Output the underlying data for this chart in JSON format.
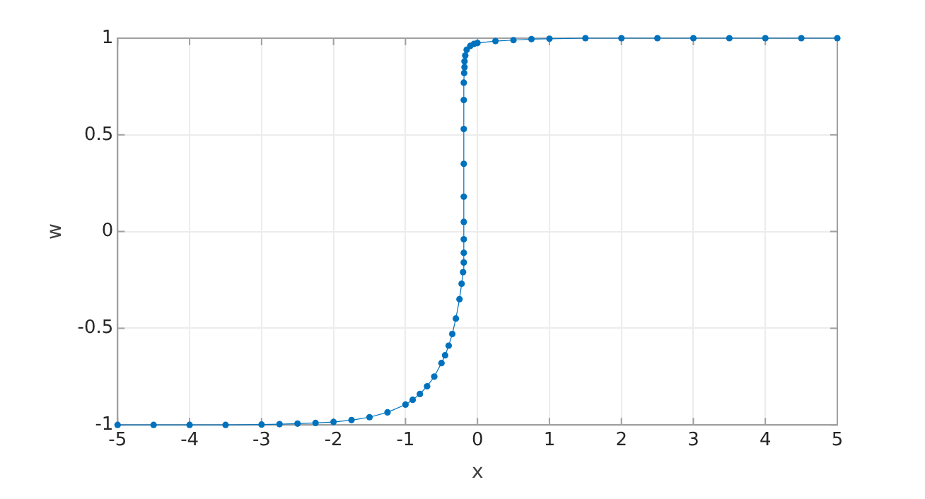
{
  "chart_data": {
    "type": "line",
    "xlabel": "x",
    "ylabel": "w",
    "xlim": [
      -5,
      5
    ],
    "ylim": [
      -1,
      1
    ],
    "xticks": [
      -5,
      -4,
      -3,
      -2,
      -1,
      0,
      1,
      2,
      3,
      4,
      5
    ],
    "yticks": [
      -1,
      -0.5,
      0,
      0.5,
      1
    ],
    "grid": true,
    "marker": "circle",
    "legend": false,
    "series": [
      {
        "color": "#0072bd",
        "x": [
          -5,
          -4.5,
          -4,
          -3.5,
          -3,
          -2.75,
          -2.5,
          -2.25,
          -2,
          -1.75,
          -1.5,
          -1.25,
          -1,
          -0.9,
          -0.8,
          -0.7,
          -0.6,
          -0.5,
          -0.45,
          -0.4,
          -0.35,
          -0.3,
          -0.25,
          -0.22,
          -0.2,
          -0.19,
          -0.19,
          -0.19,
          -0.19,
          -0.19,
          -0.19,
          -0.19,
          -0.19,
          -0.19,
          -0.185,
          -0.18,
          -0.18,
          -0.17,
          -0.15,
          -0.1,
          -0.05,
          0,
          0.25,
          0.5,
          0.75,
          1,
          1.5,
          2,
          2.5,
          3,
          3.5,
          4,
          4.5,
          5
        ],
        "values": [
          -1,
          -1,
          -1,
          -1,
          -0.998,
          -0.996,
          -0.993,
          -0.99,
          -0.985,
          -0.975,
          -0.96,
          -0.935,
          -0.895,
          -0.87,
          -0.84,
          -0.8,
          -0.75,
          -0.68,
          -0.64,
          -0.59,
          -0.53,
          -0.45,
          -0.35,
          -0.27,
          -0.21,
          -0.16,
          -0.11,
          -0.04,
          0.05,
          0.18,
          0.35,
          0.53,
          0.68,
          0.77,
          0.82,
          0.85,
          0.88,
          0.91,
          0.94,
          0.96,
          0.97,
          0.975,
          0.985,
          0.99,
          0.995,
          0.997,
          1,
          1,
          1,
          1,
          1,
          1,
          1,
          1
        ]
      }
    ]
  }
}
